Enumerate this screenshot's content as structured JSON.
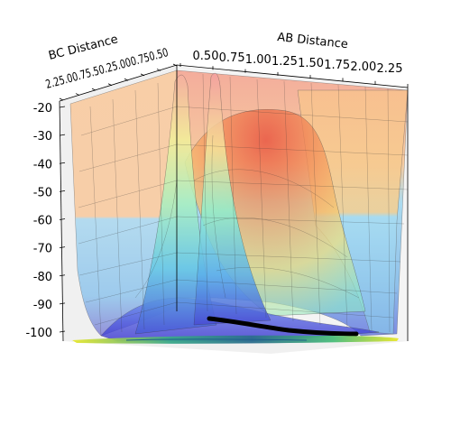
{
  "chart_data": {
    "type": "surface3d",
    "xlabel": "AB Distance",
    "ylabel": "BC Distance",
    "zlabel": "",
    "x_ticks": [
      "0.50",
      "0.75",
      "1.00",
      "1.25",
      "1.50",
      "1.75",
      "2.00",
      "2.25"
    ],
    "y_ticks": [
      "0.50",
      "0.75",
      "1.00",
      "1.25",
      "1.50",
      "1.75",
      "2.00",
      "2.25"
    ],
    "y_ticks_visible_text": "2.25.00.75.50.25.000.750.50",
    "z_ticks": [
      "-20",
      "-30",
      "-40",
      "-50",
      "-60",
      "-70",
      "-80",
      "-90",
      "-100"
    ],
    "xlim": [
      0.5,
      2.25
    ],
    "ylim": [
      0.5,
      2.25
    ],
    "zlim": [
      -100,
      -20
    ],
    "colormap": "jet",
    "surface_alpha": 0.5,
    "trajectory_color": "#000000",
    "contour_colormap": "viridis",
    "grid": true
  }
}
